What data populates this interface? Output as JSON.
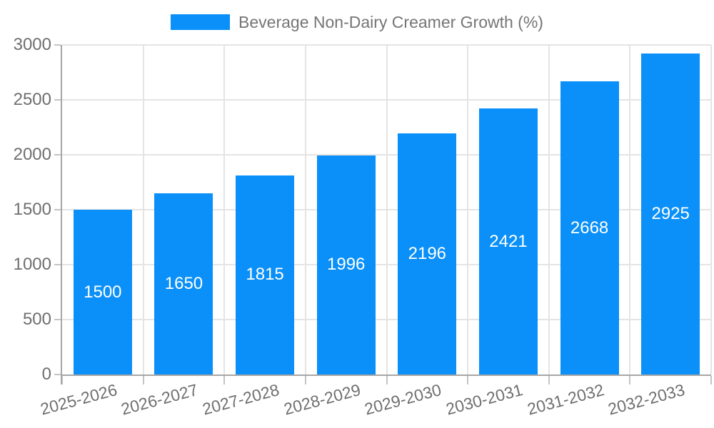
{
  "chart_data": {
    "type": "bar",
    "title": "Beverage Non-Dairy Creamer Growth (%)",
    "legend_entries": [
      "Beverage Non-Dairy Creamer Growth (%)"
    ],
    "legend_position": "top",
    "categories": [
      "2025-2026",
      "2026-2027",
      "2027-2028",
      "2028-2029",
      "2029-2030",
      "2030-2031",
      "2031-2032",
      "2032-2033"
    ],
    "series": [
      {
        "name": "Beverage Non-Dairy Creamer Growth (%)",
        "values": [
          1500,
          1650,
          1815,
          1996,
          2196,
          2421,
          2668,
          2925
        ]
      }
    ],
    "bar_value_labels": [
      "1500",
      "1650",
      "1815",
      "1996",
      "2196",
      "2421",
      "2668",
      "2925"
    ],
    "xlabel": "",
    "ylabel": "",
    "ylim": [
      0,
      3000
    ],
    "yticks": [
      0,
      500,
      1000,
      1500,
      2000,
      2500,
      3000
    ],
    "grid": true,
    "x_tick_rotation_deg": -15,
    "colors": {
      "bar": "#0a90f8",
      "bar_label": "#ffffff",
      "legend_text": "#757575",
      "axis_label": "#6f6f6f",
      "axis_line": "#a6a6a6",
      "tick": "#c4c4c4",
      "gridline": "#e4e4e4",
      "background": "#ffffff"
    }
  }
}
